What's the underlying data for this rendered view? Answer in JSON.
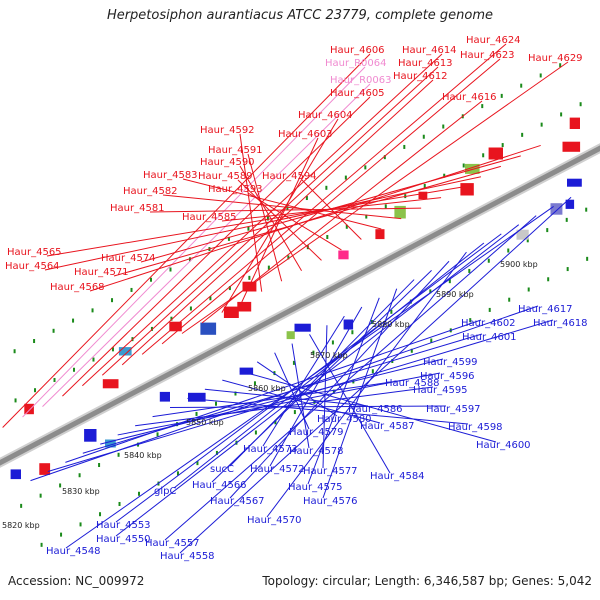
{
  "title": "Herpetosiphon aurantiacus ATCC 23779, complete genome",
  "footer": {
    "accession": "Accession: NC_009972",
    "summary": "Topology: circular; Length: 6,346,587 bp; Genes: 5,042"
  },
  "ticks": [
    "5820 kbp",
    "5830 kbp",
    "5840 kbp",
    "5850 kbp",
    "5860 kbp",
    "5870 kbp",
    "5880 kbp",
    "5890 kbp",
    "5900 kbp"
  ],
  "labels_forward": [
    "Haur_4606",
    "Haur_R0064",
    "Haur_R0063",
    "Haur_4605",
    "Haur_4614",
    "Haur_4613",
    "Haur_4612",
    "Haur_4624",
    "Haur_4623",
    "Haur_4629",
    "Haur_4616",
    "Haur_4604",
    "Haur_4603",
    "Haur_4592",
    "Haur_4591",
    "Haur_4590",
    "Haur_4589",
    "Haur_4593",
    "Haur_4594",
    "Haur_4583",
    "Haur_4582",
    "Haur_4581",
    "Haur_4585",
    "Haur_4565",
    "Haur_4564",
    "Haur_4571",
    "Haur_4574",
    "Haur_4568"
  ],
  "labels_reverse": [
    "Haur_4617",
    "Haur_4618",
    "Haur_4602",
    "Haur_4601",
    "Haur_4599",
    "Haur_4596",
    "Haur_4595",
    "Haur_4588",
    "Haur_4597",
    "Haur_4598",
    "Haur_4586",
    "Haur_4587",
    "Haur_4600",
    "Haur_4580",
    "Haur_4579",
    "Haur_4578",
    "Haur_4584",
    "Haur_4577",
    "Haur_4573",
    "Haur_4572",
    "Haur_4575",
    "Haur_4576",
    "sucC",
    "Haur_4566",
    "Haur_4567",
    "Haur_4570",
    "glpC",
    "Haur_4553",
    "Haur_4550",
    "Haur_4557",
    "Haur_4548",
    "Haur_4558"
  ],
  "colors": {
    "forward": "#e8141e",
    "rrna": "#f08ad0",
    "reverse": "#1c1cd6",
    "backbone": "#9a9a9a",
    "tick": "#1a8a1a"
  }
}
